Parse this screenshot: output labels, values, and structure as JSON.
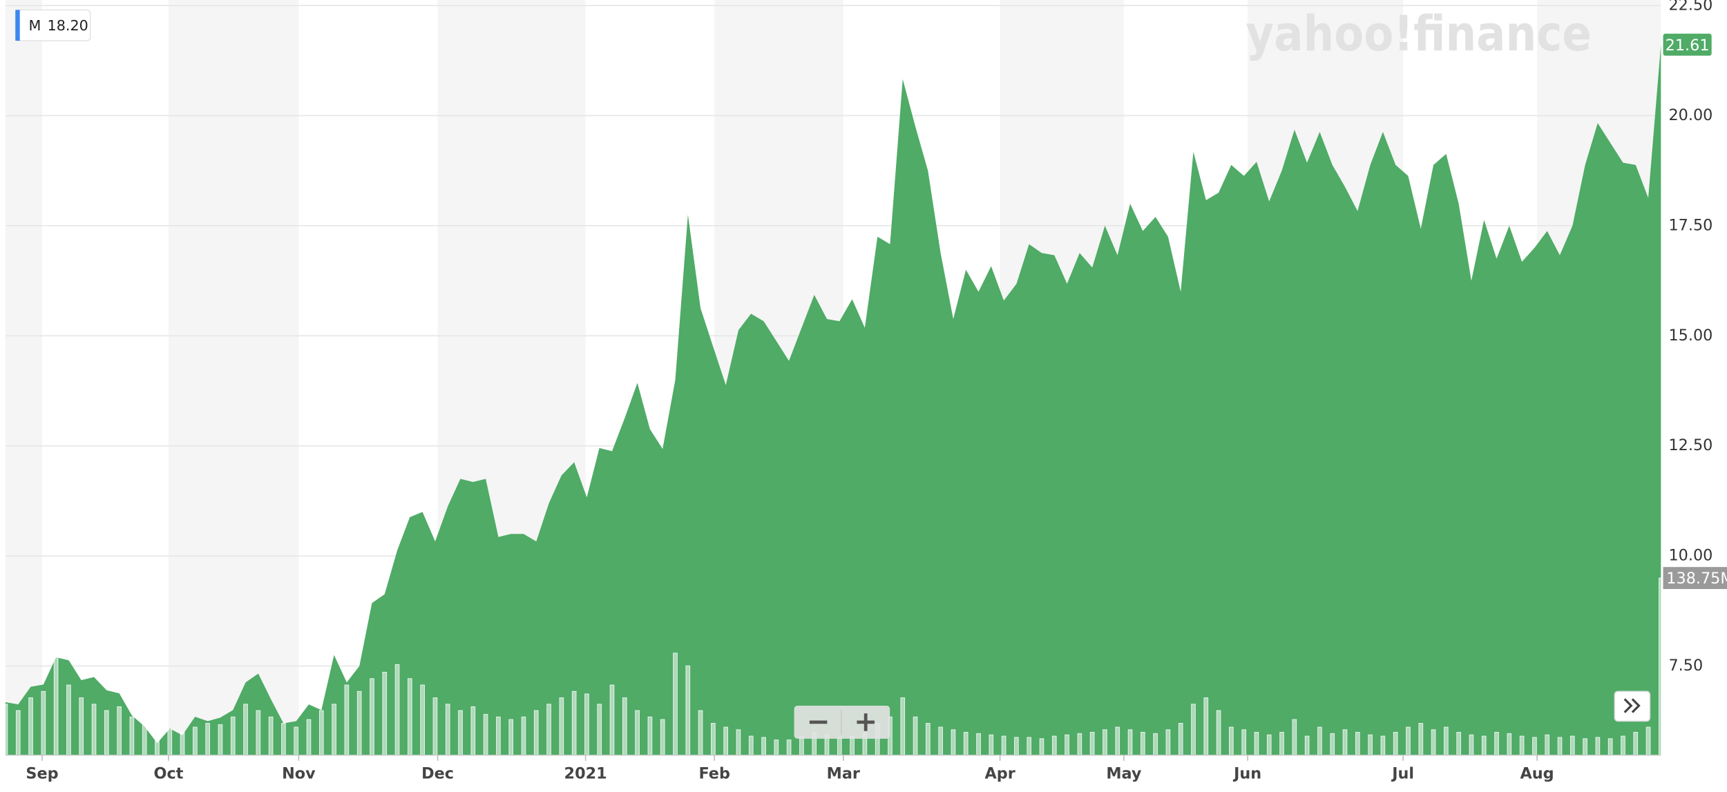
{
  "chart_data": {
    "type": "area",
    "series": [
      {
        "name": "M",
        "color": "#4fab66",
        "values": [
          6.68,
          6.63,
          7.03,
          7.08,
          7.7,
          7.63,
          7.18,
          7.25,
          6.95,
          6.88,
          6.38,
          6.13,
          5.75,
          6.08,
          5.93,
          6.35,
          6.25,
          6.33,
          6.5,
          7.13,
          7.33,
          6.75,
          6.2,
          6.25,
          6.63,
          6.5,
          7.75,
          7.13,
          7.5,
          8.93,
          9.13,
          10.13,
          10.88,
          11.0,
          10.33,
          11.13,
          11.75,
          11.68,
          11.75,
          10.43,
          10.5,
          10.5,
          10.33,
          11.2,
          11.83,
          12.13,
          11.33,
          12.45,
          12.38,
          13.13,
          13.93,
          12.88,
          12.43,
          14.0,
          17.75,
          15.63,
          14.75,
          13.88,
          15.13,
          15.5,
          15.33,
          14.88,
          14.43,
          15.18,
          15.93,
          15.38,
          15.33,
          15.83,
          15.18,
          17.25,
          17.08,
          20.83,
          19.75,
          18.75,
          16.88,
          15.38,
          16.5,
          16.0,
          16.58,
          15.8,
          16.18,
          17.08,
          16.88,
          16.83,
          16.18,
          16.88,
          16.55,
          17.5,
          16.83,
          18.0,
          17.38,
          17.7,
          17.25,
          16.0,
          19.18,
          18.08,
          18.25,
          18.88,
          18.63,
          18.95,
          18.05,
          18.75,
          19.68,
          18.93,
          19.63,
          18.88,
          18.38,
          17.83,
          18.88,
          19.63,
          18.88,
          18.63,
          17.43,
          18.88,
          19.13,
          18.0,
          16.25,
          17.63,
          16.75,
          17.5,
          16.68,
          17.0,
          17.38,
          16.83,
          17.5,
          18.88,
          19.83,
          19.38,
          18.93,
          18.88,
          18.13,
          21.61
        ],
        "readout": {
          "value": 18.2,
          "label": "18.20"
        },
        "last_marker": {
          "value": 21.61,
          "label": "21.61"
        }
      },
      {
        "name": "Volume",
        "axis": "y2",
        "values": [
          40,
          35,
          45,
          50,
          77,
          55,
          45,
          40,
          35,
          38,
          30,
          28,
          25,
          20,
          18,
          22,
          25,
          24,
          30,
          40,
          35,
          30,
          25,
          22,
          28,
          35,
          40,
          55,
          50,
          60,
          65,
          71,
          60,
          55,
          45,
          40,
          35,
          38,
          32,
          30,
          28,
          30,
          35,
          40,
          45,
          50,
          48,
          40,
          55,
          45,
          35,
          30,
          28,
          80,
          70,
          35,
          25,
          22,
          20,
          15,
          14,
          12,
          12,
          15,
          18,
          16,
          14,
          15,
          18,
          25,
          30,
          45,
          30,
          25,
          22,
          20,
          18,
          17,
          16,
          15,
          14,
          14,
          13,
          15,
          16,
          17,
          18,
          20,
          22,
          20,
          18,
          17,
          20,
          25,
          40,
          45,
          35,
          22,
          20,
          18,
          16,
          18,
          28,
          15,
          22,
          17,
          20,
          18,
          16,
          15,
          18,
          22,
          25,
          20,
          22,
          18,
          16,
          15,
          18,
          17,
          15,
          14,
          16,
          14,
          15,
          13,
          14,
          13,
          15,
          18,
          22,
          138.75
        ],
        "last_marker": {
          "value": 138.75,
          "label": "138.75M"
        }
      }
    ],
    "xlim": [
      0,
      131
    ],
    "xticks": [
      {
        "value": 2.9,
        "label": "Sep"
      },
      {
        "value": 12.9,
        "label": "Oct"
      },
      {
        "value": 23.2,
        "label": "Nov"
      },
      {
        "value": 34.2,
        "label": "Dec"
      },
      {
        "value": 45.9,
        "label": "2021"
      },
      {
        "value": 56.1,
        "label": "Feb"
      },
      {
        "value": 66.3,
        "label": "Mar"
      },
      {
        "value": 78.7,
        "label": "Apr"
      },
      {
        "value": 88.5,
        "label": "May"
      },
      {
        "value": 98.3,
        "label": "Jun"
      },
      {
        "value": 110.6,
        "label": "Jul"
      },
      {
        "value": 121.2,
        "label": "Aug"
      }
    ],
    "ylim": [
      5.475,
      22.5
    ],
    "yticks": [
      {
        "value": 7.5,
        "label": "7.50"
      },
      {
        "value": 10,
        "label": "10.00"
      },
      {
        "value": 12.5,
        "label": "12.50"
      },
      {
        "value": 15,
        "label": "15.00"
      },
      {
        "value": 17.5,
        "label": "17.50"
      },
      {
        "value": 20,
        "label": "20.00"
      },
      {
        "value": 22.5,
        "label": "22.50"
      }
    ],
    "y2lim": [
      0,
      587
    ],
    "grid": true,
    "watermark": "yahoo!finance"
  }
}
